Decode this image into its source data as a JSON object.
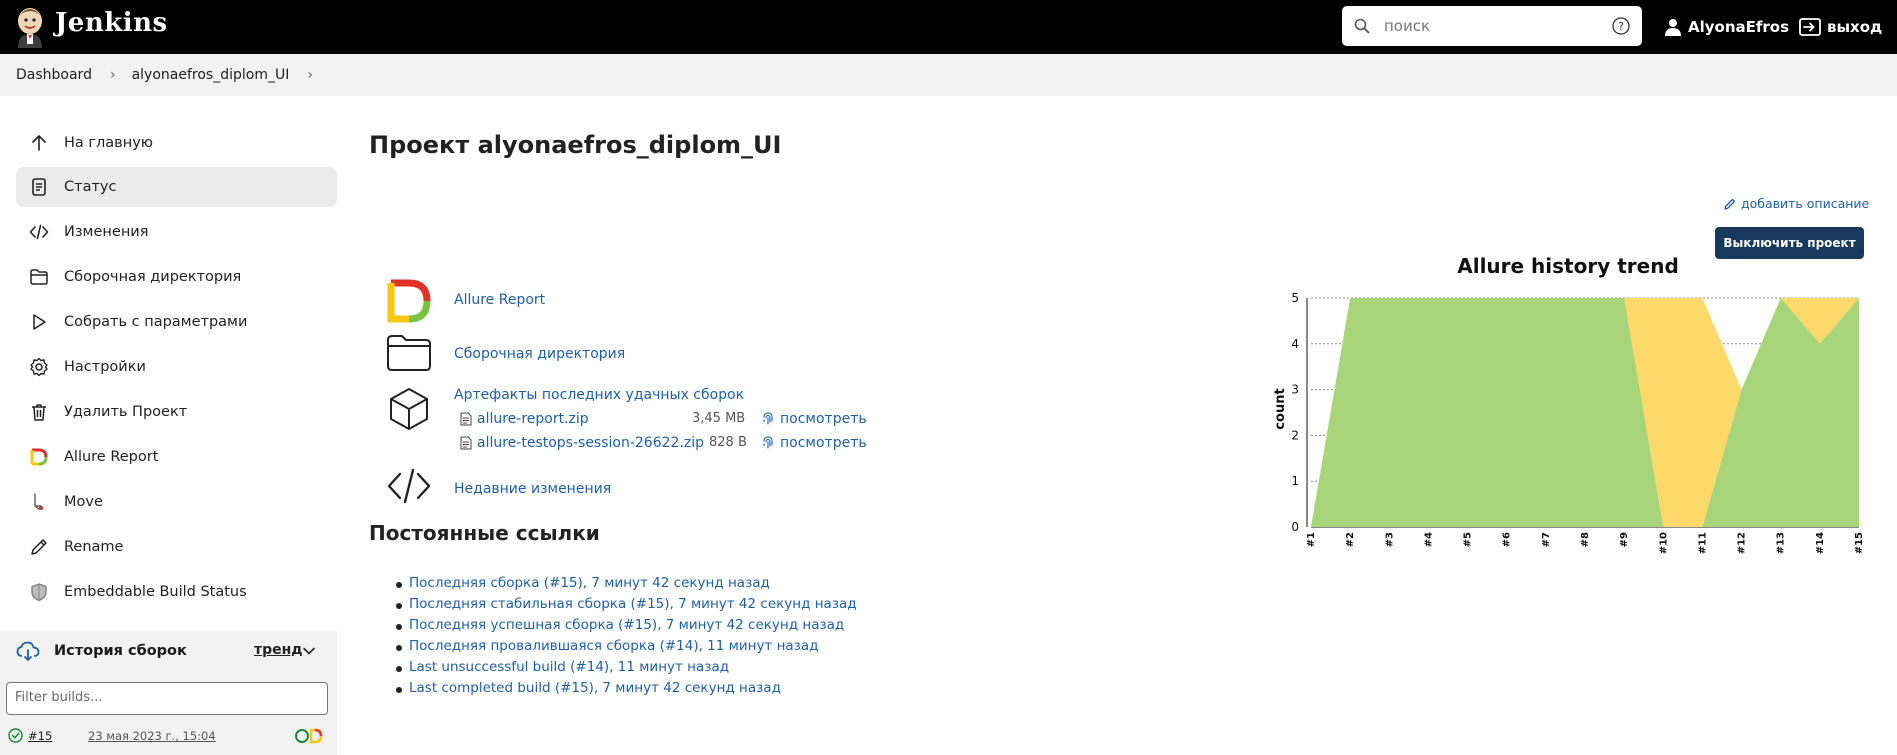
{
  "header": {
    "brand": "Jenkins",
    "search_placeholder": "поиск",
    "user_name": "AlyonaEfros",
    "logout_label": "выход",
    "logo_icon": "jenkins-butler-icon"
  },
  "breadcrumb": [
    "Dashboard",
    "alyonaefros_diplom_UI"
  ],
  "sidebar": {
    "items": [
      {
        "label": "На главную",
        "icon": "arrow-up-icon"
      },
      {
        "label": "Статус",
        "icon": "document-icon",
        "active": true
      },
      {
        "label": "Изменения",
        "icon": "code-icon"
      },
      {
        "label": "Сборочная директория",
        "icon": "folder-icon"
      },
      {
        "label": "Собрать с параметрами",
        "icon": "play-icon"
      },
      {
        "label": "Настройки",
        "icon": "gear-icon"
      },
      {
        "label": "Удалить Проект",
        "icon": "trash-icon"
      },
      {
        "label": "Allure Report",
        "icon": "allure-icon"
      },
      {
        "label": "Move",
        "icon": "move-icon"
      },
      {
        "label": "Rename",
        "icon": "pencil-icon"
      },
      {
        "label": "Embeddable Build Status",
        "icon": "shield-icon"
      }
    ],
    "history": {
      "label": "История сборок",
      "trend_label": "тренд",
      "filter_placeholder": "Filter builds...",
      "builds": [
        {
          "number": "#15",
          "date": "23 мая 2023 г., 15:04",
          "status": "success"
        }
      ]
    }
  },
  "main": {
    "title": "Проект alyonaefros_diplom_UI",
    "add_description": "добавить описание",
    "disable_button": "Выключить проект",
    "links": {
      "allure_report": "Allure Report",
      "workspace": "Сборочная директория",
      "artifacts": "Артефакты последних удачных сборок",
      "recent_changes": "Недавние изменения"
    },
    "artifacts": [
      {
        "name": "allure-report.zip",
        "size": "3,45 MB",
        "view": "посмотреть"
      },
      {
        "name": "allure-testops-session-26622.zip",
        "size": "828 B",
        "view": "посмотреть"
      }
    ],
    "permalinks_title": "Постоянные ссылки",
    "permalinks": [
      "Последняя сборка (#15), 7 минут 42 секунд назад",
      "Последняя стабильная сборка (#15), 7 минут 42 секунд назад",
      "Последняя успешная сборка (#15), 7 минут 42 секунд назад",
      "Последняя провалившаяся сборка (#14), 11 минут назад",
      "Last unsuccessful build (#14), 11 минут назад",
      "Last completed build (#15), 7 минут 42 секунд назад"
    ]
  },
  "colors": {
    "header_bg": "#000000",
    "link": "#1f5fa8",
    "button_bg": "#173a5e",
    "passed": "#a8d47a",
    "failed": "#fdd86a"
  },
  "chart_data": {
    "type": "area",
    "title": "Allure history trend",
    "ylabel": "count",
    "xlabel": "",
    "categories": [
      "#1",
      "#2",
      "#3",
      "#4",
      "#5",
      "#6",
      "#7",
      "#8",
      "#9",
      "#10",
      "#11",
      "#12",
      "#13",
      "#14",
      "#15"
    ],
    "ylim": [
      0,
      5
    ],
    "yticks": [
      0,
      1,
      2,
      3,
      4,
      5
    ],
    "stacked": true,
    "series": [
      {
        "key": "passed",
        "color": "#a8d47a",
        "values": [
          0,
          5,
          5,
          5,
          5,
          5,
          5,
          5,
          5,
          0,
          0,
          3,
          5,
          4,
          5
        ]
      },
      {
        "key": "failed",
        "color": "#fdd86a",
        "values": [
          0,
          0,
          0,
          0,
          0,
          0,
          0,
          0,
          0,
          5,
          5,
          0,
          0,
          1,
          0
        ]
      }
    ]
  }
}
